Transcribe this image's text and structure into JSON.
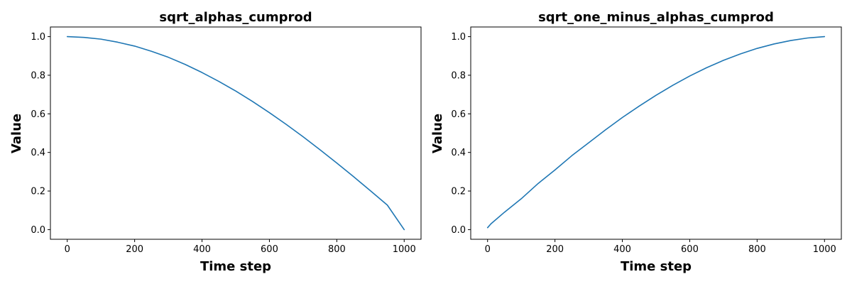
{
  "chart_data": [
    {
      "type": "line",
      "title": "sqrt_alphas_cumprod",
      "xlabel": "Time step",
      "ylabel": "Value",
      "xlim": [
        -50,
        1050
      ],
      "ylim": [
        -0.05,
        1.05
      ],
      "xticks": [
        0,
        200,
        400,
        600,
        800,
        1000
      ],
      "yticks": [
        0.0,
        0.2,
        0.4,
        0.6,
        0.8,
        1.0
      ],
      "xtick_labels": [
        "0",
        "200",
        "400",
        "600",
        "800",
        "1000"
      ],
      "ytick_labels": [
        "0.0",
        "0.2",
        "0.4",
        "0.6",
        "0.8",
        "1.0"
      ],
      "grid": false,
      "series": [
        {
          "color": "#1f77b4",
          "x": [
            0,
            50,
            100,
            150,
            200,
            250,
            300,
            350,
            400,
            450,
            500,
            550,
            600,
            650,
            700,
            750,
            800,
            850,
            900,
            950,
            1000
          ],
          "y": [
            1.0,
            0.996,
            0.987,
            0.971,
            0.951,
            0.924,
            0.893,
            0.856,
            0.814,
            0.768,
            0.718,
            0.664,
            0.606,
            0.545,
            0.481,
            0.414,
            0.345,
            0.274,
            0.201,
            0.127,
            0.0
          ]
        }
      ]
    },
    {
      "type": "line",
      "title": "sqrt_one_minus_alphas_cumprod",
      "xlabel": "Time step",
      "ylabel": "Value",
      "xlim": [
        -50,
        1050
      ],
      "ylim": [
        -0.05,
        1.05
      ],
      "xticks": [
        0,
        200,
        400,
        600,
        800,
        1000
      ],
      "yticks": [
        0.0,
        0.2,
        0.4,
        0.6,
        0.8,
        1.0
      ],
      "xtick_labels": [
        "0",
        "200",
        "400",
        "600",
        "800",
        "1000"
      ],
      "ytick_labels": [
        "0.0",
        "0.2",
        "0.4",
        "0.6",
        "0.8",
        "1.0"
      ],
      "grid": false,
      "series": [
        {
          "color": "#1f77b4",
          "x": [
            0,
            10,
            50,
            100,
            150,
            200,
            250,
            300,
            350,
            400,
            450,
            500,
            550,
            600,
            650,
            700,
            750,
            800,
            850,
            900,
            950,
            1000
          ],
          "y": [
            0.01,
            0.03,
            0.09,
            0.16,
            0.239,
            0.309,
            0.383,
            0.45,
            0.517,
            0.581,
            0.64,
            0.696,
            0.748,
            0.796,
            0.839,
            0.877,
            0.91,
            0.939,
            0.962,
            0.98,
            0.993,
            1.0
          ]
        }
      ]
    }
  ]
}
